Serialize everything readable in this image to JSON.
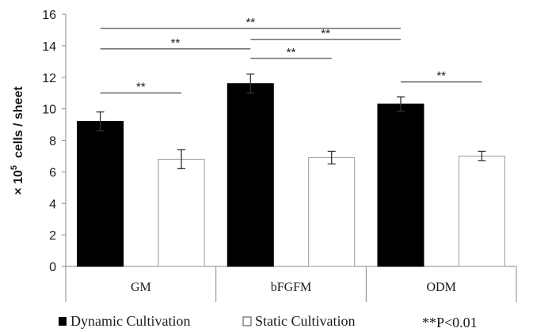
{
  "chart_data": {
    "type": "bar",
    "ylabel_prefix": "× 10",
    "ylabel_exp": "5",
    "ylabel_suffix": "  cells / sheet",
    "ylim": [
      0,
      16
    ],
    "yticks": [
      "0",
      "2",
      "4",
      "6",
      "8",
      "10",
      "12",
      "14",
      "16"
    ],
    "categories": [
      "GM",
      "bFGFM",
      "ODM"
    ],
    "series": [
      {
        "name": "Dynamic Cultivation",
        "values": [
          9.2,
          11.6,
          10.3
        ],
        "errors": [
          0.6,
          0.6,
          0.45
        ],
        "color": "#000000"
      },
      {
        "name": "Static Cultivation",
        "values": [
          6.8,
          6.9,
          7.0
        ],
        "errors": [
          0.6,
          0.4,
          0.3
        ],
        "color": "#ffffff"
      }
    ],
    "significance": [
      {
        "from": [
          0,
          0
        ],
        "to": [
          2,
          0
        ],
        "label": "**",
        "y": 15.1
      },
      {
        "from": [
          1,
          0
        ],
        "to": [
          2,
          0
        ],
        "label": "**",
        "y": 14.4
      },
      {
        "from": [
          0,
          0
        ],
        "to": [
          1,
          0
        ],
        "label": "**",
        "y": 13.8
      },
      {
        "from": [
          1,
          0
        ],
        "to": [
          1,
          1
        ],
        "label": "**",
        "y": 13.2
      },
      {
        "from": [
          0,
          0
        ],
        "to": [
          0,
          1
        ],
        "label": "**",
        "y": 11.0
      },
      {
        "from": [
          2,
          0
        ],
        "to": [
          2,
          1
        ],
        "label": "**",
        "y": 11.7
      }
    ],
    "grid": false,
    "legend_position": "bottom",
    "note": "**P<0.01"
  }
}
